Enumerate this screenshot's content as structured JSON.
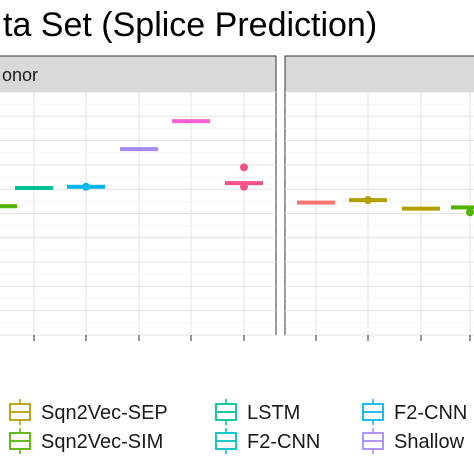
{
  "chart_data": {
    "type": "boxplot",
    "title": "ta Set (Splice Prediction)",
    "panels": [
      {
        "label": "onor",
        "boxes": [
          {
            "series": "Sqn2Vec-SIM",
            "color": "#53b400",
            "median": 0.53,
            "outliers": []
          },
          {
            "series": "LSTM",
            "color": "#00c094",
            "median": 0.605,
            "outliers": []
          },
          {
            "series": "F2-CNN (blue)",
            "color": "#00b6eb",
            "median": 0.61,
            "outliers": [
              0.61
            ]
          },
          {
            "series": "Shallow",
            "color": "#a58aff",
            "median": 0.765,
            "outliers": []
          },
          {
            "series": "(pink)",
            "color": "#fb61d7",
            "median": 0.88,
            "outliers": []
          },
          {
            "series": "(magenta)",
            "color": "#f8518a",
            "median": 0.625,
            "outliers": [
              0.61,
              0.69
            ]
          }
        ]
      },
      {
        "label": "",
        "boxes": [
          {
            "series": "(red)",
            "color": "#f8766d",
            "median": 0.545,
            "outliers": []
          },
          {
            "series": "Sqn2Vec-SEP",
            "color": "#b79f00",
            "median": 0.555,
            "outliers": [
              0.555
            ]
          },
          {
            "series": "Sqn2Vec-SEP",
            "color": "#b79f00",
            "median": 0.52,
            "outliers": []
          },
          {
            "series": "Sqn2Vec-SIM",
            "color": "#53b400",
            "median": 0.525,
            "outliers": [
              0.505
            ]
          }
        ]
      }
    ],
    "legend": {
      "position": "bottom",
      "entries": [
        {
          "label": "Sqn2Vec-SEP",
          "color": "#b79f00"
        },
        {
          "label": "LSTM",
          "color": "#00c094"
        },
        {
          "label": "F2-CNN",
          "color": "#00b6eb"
        },
        {
          "label": "Sqn2Vec-SIM",
          "color": "#53b400"
        },
        {
          "label": "F2-CNN",
          "color": "#00bfc4"
        },
        {
          "label": "Shallow",
          "color": "#a58aff"
        }
      ]
    },
    "grid": true
  }
}
